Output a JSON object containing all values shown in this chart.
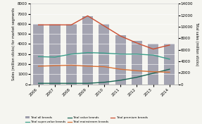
{
  "years": [
    2006,
    2007,
    2008,
    2009,
    2010,
    2011,
    2012,
    2013,
    2014
  ],
  "bar_values": [
    10500,
    10500,
    10500,
    11800,
    10500,
    8500,
    7500,
    7000,
    7000
  ],
  "super_value": [
    2750,
    2700,
    3000,
    3150,
    3100,
    3000,
    3000,
    2900,
    2500
  ],
  "value_brands": [
    100,
    100,
    100,
    100,
    200,
    400,
    700,
    1100,
    1500
  ],
  "mainstream": [
    1800,
    1850,
    1900,
    1800,
    1750,
    1500,
    1350,
    1250,
    1200
  ],
  "premium": [
    5900,
    5900,
    5900,
    6800,
    5800,
    4800,
    4100,
    3500,
    3900
  ],
  "bar_color": "#9b9baa",
  "super_value_color": "#3a9e8a",
  "value_color": "#1a6655",
  "mainstream_color": "#d97035",
  "premium_color": "#cc4e30",
  "ylabel_left": "Sales (million sticks) for market segments",
  "ylabel_right": "Total sales (million sticks)",
  "ylim_left": [
    0,
    8000
  ],
  "ylim_right": [
    0,
    14000
  ],
  "yticks_left": [
    0,
    1000,
    2000,
    3000,
    4000,
    5000,
    6000,
    7000,
    8000
  ],
  "yticks_right": [
    0,
    2000,
    4000,
    6000,
    8000,
    10000,
    12000,
    14000
  ],
  "legend_items": [
    "Total all brands",
    "Total super-value brands",
    "Total value brands",
    "Total mainstream brands",
    "Total premium brands"
  ],
  "bg_color": "#f5f5f0"
}
